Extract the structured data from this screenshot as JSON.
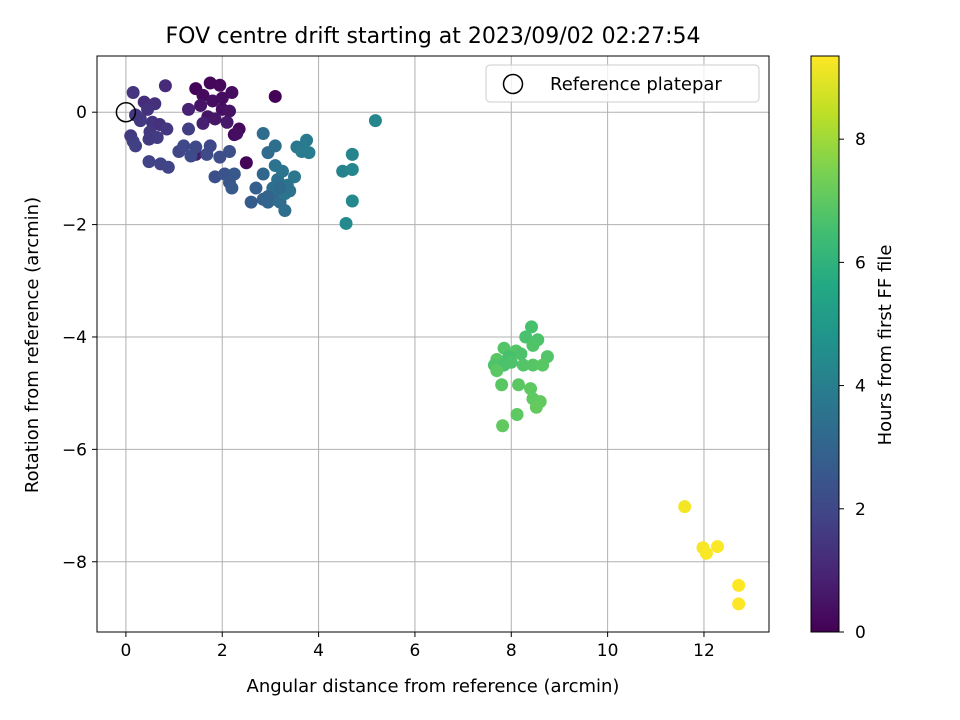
{
  "chart_data": {
    "type": "scatter",
    "title": "FOV centre drift starting at 2023/09/02 02:27:54",
    "xlabel": "Angular distance from reference (arcmin)",
    "ylabel": "Rotation from reference (arcmin)",
    "xlim": [
      -0.6,
      13.35
    ],
    "ylim": [
      -9.25,
      1.0
    ],
    "xticks": [
      0,
      2,
      4,
      6,
      8,
      10,
      12
    ],
    "yticks": [
      0,
      -2,
      -4,
      -6,
      -8
    ],
    "grid": true,
    "legend": {
      "label": "Reference platepar",
      "placement": "top-right",
      "marker": "open-circle"
    },
    "reference_point": {
      "x": 0,
      "y": 0
    },
    "colorbar": {
      "label": "Hours from first FF file",
      "range": [
        0,
        9.35
      ],
      "ticks": [
        0,
        2,
        4,
        6,
        8
      ],
      "colormap": "viridis"
    },
    "points": [
      {
        "x": 1.45,
        "y": 0.42,
        "h": 0.1
      },
      {
        "x": 1.75,
        "y": 0.52,
        "h": 0.15
      },
      {
        "x": 1.95,
        "y": 0.48,
        "h": 0.2
      },
      {
        "x": 1.6,
        "y": 0.3,
        "h": 0.25
      },
      {
        "x": 2.2,
        "y": 0.35,
        "h": 0.3
      },
      {
        "x": 1.8,
        "y": 0.2,
        "h": 0.35
      },
      {
        "x": 2.0,
        "y": 0.05,
        "h": 0.4
      },
      {
        "x": 2.15,
        "y": 0.02,
        "h": 0.45
      },
      {
        "x": 1.7,
        "y": -0.08,
        "h": 0.5
      },
      {
        "x": 1.85,
        "y": -0.12,
        "h": 0.55
      },
      {
        "x": 2.1,
        "y": -0.18,
        "h": 0.6
      },
      {
        "x": 2.35,
        "y": -0.3,
        "h": 0.2
      },
      {
        "x": 2.25,
        "y": -0.4,
        "h": 0.25
      },
      {
        "x": 2.5,
        "y": -0.9,
        "h": 0.1
      },
      {
        "x": 3.1,
        "y": 0.28,
        "h": 0.05
      },
      {
        "x": 2.0,
        "y": 0.25,
        "h": 0.3
      },
      {
        "x": 1.55,
        "y": 0.12,
        "h": 0.5
      },
      {
        "x": 1.45,
        "y": -0.75,
        "h": 0.7
      },
      {
        "x": 1.3,
        "y": 0.05,
        "h": 0.9
      },
      {
        "x": 1.6,
        "y": -0.2,
        "h": 0.8
      },
      {
        "x": 2.3,
        "y": -0.38,
        "h": 0.35
      },
      {
        "x": 0.82,
        "y": 0.47,
        "h": 1.1
      },
      {
        "x": 0.38,
        "y": 0.18,
        "h": 1.2
      },
      {
        "x": 0.6,
        "y": 0.15,
        "h": 1.3
      },
      {
        "x": 0.15,
        "y": 0.35,
        "h": 1.4
      },
      {
        "x": 0.45,
        "y": 0.05,
        "h": 1.35
      },
      {
        "x": 0.2,
        "y": -0.05,
        "h": 1.5
      },
      {
        "x": 0.3,
        "y": -0.12,
        "h": 1.45
      },
      {
        "x": 0.55,
        "y": -0.18,
        "h": 1.4
      },
      {
        "x": 0.7,
        "y": -0.22,
        "h": 1.3
      },
      {
        "x": 0.85,
        "y": -0.3,
        "h": 1.5
      },
      {
        "x": 0.5,
        "y": -0.35,
        "h": 1.55
      },
      {
        "x": 0.1,
        "y": -0.42,
        "h": 1.6
      },
      {
        "x": 0.65,
        "y": -0.45,
        "h": 1.65
      },
      {
        "x": 0.48,
        "y": -0.48,
        "h": 1.6
      },
      {
        "x": 0.15,
        "y": -0.52,
        "h": 1.7
      },
      {
        "x": 0.2,
        "y": -0.6,
        "h": 1.75
      },
      {
        "x": 0.48,
        "y": -0.88,
        "h": 1.8
      },
      {
        "x": 0.72,
        "y": -0.92,
        "h": 1.85
      },
      {
        "x": 0.88,
        "y": -0.98,
        "h": 1.9
      },
      {
        "x": 1.1,
        "y": -0.7,
        "h": 1.95
      },
      {
        "x": 1.2,
        "y": -0.6,
        "h": 2.0
      },
      {
        "x": 1.3,
        "y": -0.3,
        "h": 1.7
      },
      {
        "x": 1.45,
        "y": -0.62,
        "h": 2.05
      },
      {
        "x": 1.68,
        "y": -0.75,
        "h": 2.1
      },
      {
        "x": 1.75,
        "y": -0.6,
        "h": 2.0
      },
      {
        "x": 1.35,
        "y": -0.78,
        "h": 2.15
      },
      {
        "x": 1.95,
        "y": -0.8,
        "h": 2.2
      },
      {
        "x": 2.15,
        "y": -0.7,
        "h": 2.25
      },
      {
        "x": 0.3,
        "y": -0.15,
        "h": 1.55
      },
      {
        "x": 1.85,
        "y": -1.15,
        "h": 2.3
      },
      {
        "x": 2.05,
        "y": -1.1,
        "h": 2.4
      },
      {
        "x": 2.15,
        "y": -1.25,
        "h": 2.5
      },
      {
        "x": 2.25,
        "y": -1.1,
        "h": 2.55
      },
      {
        "x": 2.2,
        "y": -1.35,
        "h": 2.6
      },
      {
        "x": 2.6,
        "y": -1.6,
        "h": 2.7
      },
      {
        "x": 2.7,
        "y": -1.35,
        "h": 2.8
      },
      {
        "x": 2.85,
        "y": -1.55,
        "h": 2.9
      },
      {
        "x": 2.95,
        "y": -1.6,
        "h": 3.0
      },
      {
        "x": 2.85,
        "y": -1.1,
        "h": 3.1
      },
      {
        "x": 3.1,
        "y": -1.55,
        "h": 3.2
      },
      {
        "x": 3.2,
        "y": -1.6,
        "h": 3.3
      },
      {
        "x": 3.3,
        "y": -1.75,
        "h": 3.35
      },
      {
        "x": 3.05,
        "y": -1.35,
        "h": 3.4
      },
      {
        "x": 3.15,
        "y": -1.2,
        "h": 3.45
      },
      {
        "x": 3.1,
        "y": -0.95,
        "h": 3.5
      },
      {
        "x": 3.25,
        "y": -1.05,
        "h": 3.55
      },
      {
        "x": 3.35,
        "y": -1.3,
        "h": 3.6
      },
      {
        "x": 3.3,
        "y": -1.45,
        "h": 3.65
      },
      {
        "x": 3.5,
        "y": -1.15,
        "h": 3.7
      },
      {
        "x": 3.4,
        "y": -1.4,
        "h": 3.5
      },
      {
        "x": 2.95,
        "y": -0.72,
        "h": 3.3
      },
      {
        "x": 3.1,
        "y": -0.6,
        "h": 3.4
      },
      {
        "x": 2.85,
        "y": -0.38,
        "h": 3.3
      },
      {
        "x": 3.55,
        "y": -0.62,
        "h": 3.75
      },
      {
        "x": 3.75,
        "y": -0.5,
        "h": 3.8
      },
      {
        "x": 3.65,
        "y": -0.7,
        "h": 3.85
      },
      {
        "x": 3.8,
        "y": -0.72,
        "h": 3.9
      },
      {
        "x": 3.2,
        "y": -1.35,
        "h": 3.2
      },
      {
        "x": 2.95,
        "y": -1.5,
        "h": 3.0
      },
      {
        "x": 4.5,
        "y": -1.05,
        "h": 4.1
      },
      {
        "x": 4.7,
        "y": -0.75,
        "h": 4.2
      },
      {
        "x": 4.7,
        "y": -1.02,
        "h": 4.25
      },
      {
        "x": 5.18,
        "y": -0.15,
        "h": 4.3
      },
      {
        "x": 4.7,
        "y": -1.58,
        "h": 4.35
      },
      {
        "x": 4.57,
        "y": -1.98,
        "h": 4.4
      },
      {
        "x": 8.42,
        "y": -3.82,
        "h": 6.6
      },
      {
        "x": 8.3,
        "y": -4.0,
        "h": 6.65
      },
      {
        "x": 8.55,
        "y": -4.05,
        "h": 6.7
      },
      {
        "x": 8.45,
        "y": -4.15,
        "h": 6.75
      },
      {
        "x": 7.85,
        "y": -4.2,
        "h": 6.8
      },
      {
        "x": 8.1,
        "y": -4.25,
        "h": 6.85
      },
      {
        "x": 7.7,
        "y": -4.4,
        "h": 6.9
      },
      {
        "x": 7.95,
        "y": -4.35,
        "h": 6.6
      },
      {
        "x": 8.2,
        "y": -4.3,
        "h": 6.7
      },
      {
        "x": 8.75,
        "y": -4.35,
        "h": 6.8
      },
      {
        "x": 7.65,
        "y": -4.5,
        "h": 6.75
      },
      {
        "x": 7.85,
        "y": -4.5,
        "h": 6.65
      },
      {
        "x": 8.0,
        "y": -4.45,
        "h": 6.7
      },
      {
        "x": 8.25,
        "y": -4.5,
        "h": 6.8
      },
      {
        "x": 8.45,
        "y": -4.5,
        "h": 6.85
      },
      {
        "x": 8.65,
        "y": -4.5,
        "h": 6.9
      },
      {
        "x": 7.7,
        "y": -4.6,
        "h": 6.95
      },
      {
        "x": 7.8,
        "y": -4.85,
        "h": 6.9
      },
      {
        "x": 8.15,
        "y": -4.85,
        "h": 6.95
      },
      {
        "x": 8.4,
        "y": -4.92,
        "h": 7.0
      },
      {
        "x": 8.45,
        "y": -5.1,
        "h": 7.0
      },
      {
        "x": 8.6,
        "y": -5.15,
        "h": 7.05
      },
      {
        "x": 8.52,
        "y": -5.25,
        "h": 7.1
      },
      {
        "x": 8.12,
        "y": -5.38,
        "h": 7.0
      },
      {
        "x": 7.82,
        "y": -5.58,
        "h": 7.05
      },
      {
        "x": 11.6,
        "y": -7.02,
        "h": 9.2
      },
      {
        "x": 11.98,
        "y": -7.75,
        "h": 9.25
      },
      {
        "x": 12.28,
        "y": -7.73,
        "h": 9.3
      },
      {
        "x": 12.05,
        "y": -7.85,
        "h": 9.3
      },
      {
        "x": 12.72,
        "y": -8.42,
        "h": 9.35
      },
      {
        "x": 12.72,
        "y": -8.75,
        "h": 9.35
      }
    ]
  }
}
